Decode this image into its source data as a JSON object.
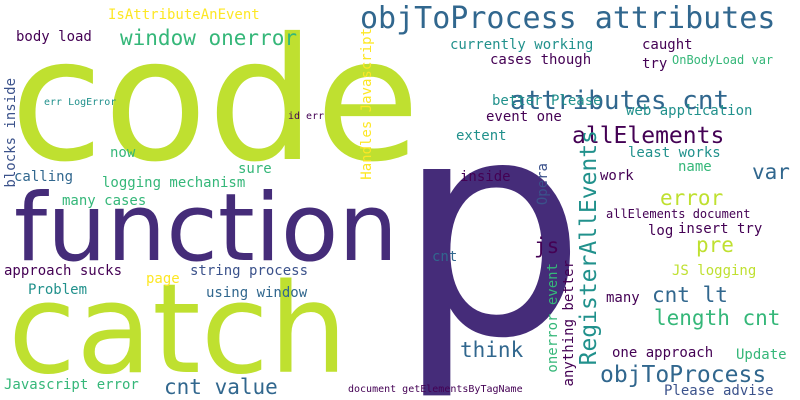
{
  "colors": {
    "lime": "#bfe030",
    "purple": "#452c79",
    "teal": "#21918c",
    "blue": "#31678e",
    "navy": "#3b528b",
    "green": "#35b779",
    "dark": "#440154",
    "yellow": "#fde725"
  },
  "words": {
    "code": "code",
    "p": "p",
    "function": "function",
    "catch": "catch",
    "objToProcess_attributes": "objToProcess attributes",
    "attributes_cnt": "attributes cnt",
    "window_onerror": "window onerror",
    "allElements": "allElements",
    "RegisterAllEvents": "RegisterAllEvents",
    "objToProcess": "objToProcess",
    "length_cnt": "length cnt",
    "cnt_lt": "cnt lt",
    "cnt_value": "cnt value",
    "think": "think",
    "error": "error",
    "pre": "pre",
    "var": "var",
    "js": "js",
    "IsAttributeAnEvent": "IsAttributeAnEvent",
    "body_load": "body load",
    "blocks_inside": "blocks inside",
    "currently_working": "currently working",
    "caught": "caught",
    "cases_though": "cases though",
    "try": "try",
    "OnBodyLoad_var": "OnBodyLoad var",
    "err_LogError": "err LogError",
    "id_err": "id err",
    "better_Please": "better Please",
    "web_application": "web application",
    "event_one": "event one",
    "extent": "extent",
    "now": "now",
    "least_works": "least works",
    "name": "name",
    "Opera": "Opera",
    "calling": "calling",
    "sure": "sure",
    "logging_mechanism": "logging mechanism",
    "many_cases": "many cases",
    "inside": "inside",
    "work": "work",
    "Handles_Javascript": "Handles Javascript",
    "allElements_document": "allElements document",
    "log": "log",
    "insert_try": "insert try",
    "approach_sucks": "approach sucks",
    "string_process": "string process",
    "page": "page",
    "cnt": "cnt",
    "JS_logging": "JS logging",
    "Problem": "Problem",
    "using_window": "using window",
    "many": "many",
    "anything_better": "anything better",
    "onerror_event": "onerror event",
    "one_approach": "one approach",
    "Update": "Update",
    "Javascript_error": "Javascript error",
    "document_getElementsByTagName": "document getElementsByTagName",
    "Please_advise": "Please advise"
  }
}
